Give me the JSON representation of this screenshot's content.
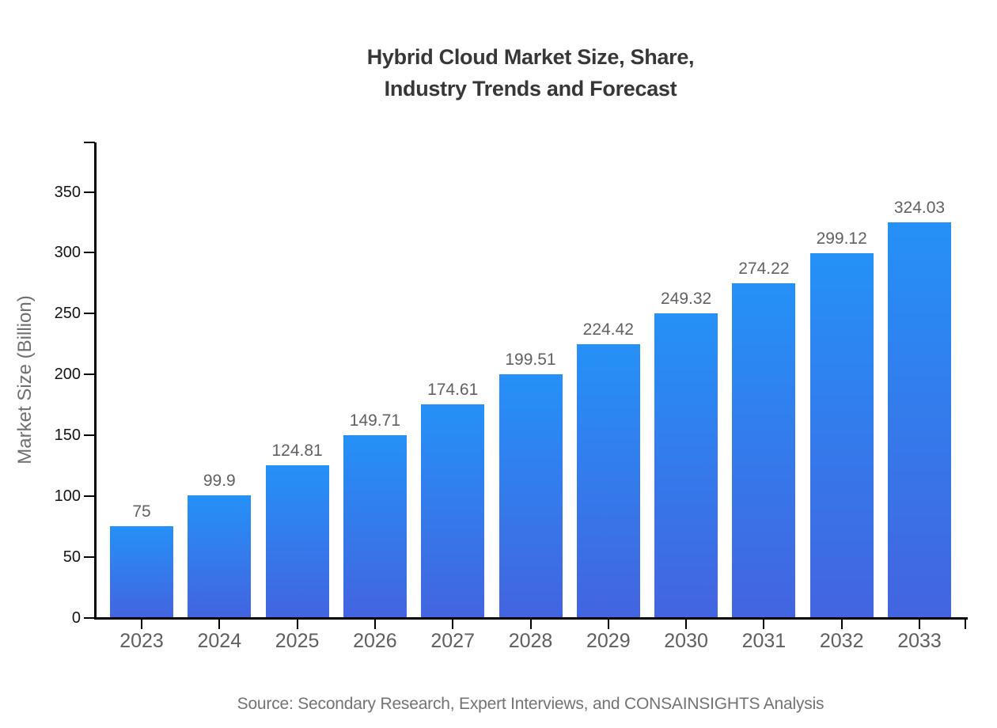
{
  "title": {
    "line1": "Hybrid Cloud Market Size, Share,",
    "line2": "Industry Trends and Forecast"
  },
  "footer": {
    "source_text": "Source: Secondary Research, Expert Interviews, and CONSAINSIGHTS Analysis"
  },
  "chart_data": {
    "type": "bar",
    "title": "Hybrid Cloud Market Size, Share, Industry Trends and Forecast",
    "categories": [
      "2023",
      "2024",
      "2025",
      "2026",
      "2027",
      "2028",
      "2029",
      "2030",
      "2031",
      "2032",
      "2033"
    ],
    "values": [
      75,
      99.9,
      124.81,
      149.71,
      174.61,
      199.51,
      224.42,
      249.32,
      274.22,
      299.12,
      324.03
    ],
    "value_labels": [
      "75",
      "99.9",
      "124.81",
      "149.71",
      "174.61",
      "199.51",
      "224.42",
      "249.32",
      "274.22",
      "299.12",
      "324.03"
    ],
    "xlabel": "",
    "ylabel": "Market Size (Billion)",
    "ylim": [
      0,
      390
    ],
    "yticks": [
      0,
      50,
      100,
      150,
      200,
      250,
      300,
      350
    ],
    "grid": false,
    "legend_position": "none",
    "colors": {
      "bar_gradient_top": "#2591F7",
      "bar_gradient_bottom": "#4364E0",
      "axis": "#000000",
      "ytick_label": "#141414",
      "xtick_label": "#5f5f5f",
      "value_label": "#616161",
      "ylabel_color": "#6f6f6f",
      "title_color": "#373737",
      "source_color": "#737373"
    }
  }
}
